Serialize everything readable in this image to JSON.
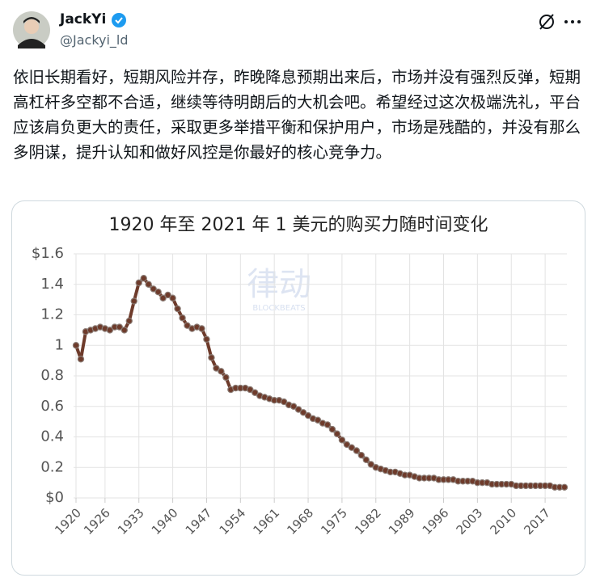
{
  "post": {
    "author": "JackYi",
    "handle": "@Jackyi_ld",
    "text": "依旧长期看好，短期风险并存，昨晚降息预期出来后，市场并没有强烈反弹，短期高杠杆多空都不合适，继续等待明朗后的大机会吧。希望经过这次极端洗礼，平台应该肩负更大的责任，采取更多举措平衡和保护用户，市场是残酷的，并没有那么多阴谋，提升认知和做好风控是你最好的核心竞争力。"
  },
  "chart_data": {
    "type": "line",
    "title": "1920 年至 2021 年 1 美元的购买力随时间变化",
    "watermark": "律动",
    "watermark_sub": "BLOCKBEATS",
    "x": [
      1920,
      1921,
      1922,
      1923,
      1924,
      1925,
      1926,
      1927,
      1928,
      1929,
      1930,
      1931,
      1932,
      1933,
      1934,
      1935,
      1936,
      1937,
      1938,
      1939,
      1940,
      1941,
      1942,
      1943,
      1944,
      1945,
      1946,
      1947,
      1948,
      1949,
      1950,
      1951,
      1952,
      1953,
      1954,
      1955,
      1956,
      1957,
      1958,
      1959,
      1960,
      1961,
      1962,
      1963,
      1964,
      1965,
      1966,
      1967,
      1968,
      1969,
      1970,
      1971,
      1972,
      1973,
      1974,
      1975,
      1976,
      1977,
      1978,
      1979,
      1980,
      1981,
      1982,
      1983,
      1984,
      1985,
      1986,
      1987,
      1988,
      1989,
      1990,
      1991,
      1992,
      1993,
      1994,
      1995,
      1996,
      1997,
      1998,
      1999,
      2000,
      2001,
      2002,
      2003,
      2004,
      2005,
      2006,
      2007,
      2008,
      2009,
      2010,
      2011,
      2012,
      2013,
      2014,
      2015,
      2016,
      2017,
      2018,
      2019,
      2020,
      2021
    ],
    "values": [
      1.0,
      0.91,
      1.09,
      1.1,
      1.11,
      1.12,
      1.11,
      1.1,
      1.12,
      1.12,
      1.1,
      1.16,
      1.29,
      1.41,
      1.44,
      1.4,
      1.37,
      1.35,
      1.31,
      1.33,
      1.31,
      1.24,
      1.18,
      1.13,
      1.11,
      1.12,
      1.11,
      1.04,
      0.92,
      0.85,
      0.83,
      0.79,
      0.71,
      0.72,
      0.72,
      0.72,
      0.71,
      0.69,
      0.67,
      0.66,
      0.65,
      0.64,
      0.64,
      0.63,
      0.61,
      0.6,
      0.58,
      0.56,
      0.54,
      0.52,
      0.51,
      0.49,
      0.48,
      0.45,
      0.42,
      0.38,
      0.35,
      0.33,
      0.31,
      0.28,
      0.25,
      0.22,
      0.2,
      0.19,
      0.18,
      0.17,
      0.17,
      0.16,
      0.15,
      0.15,
      0.14,
      0.13,
      0.13,
      0.13,
      0.13,
      0.12,
      0.12,
      0.12,
      0.12,
      0.11,
      0.11,
      0.11,
      0.11,
      0.1,
      0.1,
      0.1,
      0.09,
      0.09,
      0.09,
      0.09,
      0.09,
      0.08,
      0.08,
      0.08,
      0.08,
      0.08,
      0.08,
      0.08,
      0.08,
      0.07,
      0.07,
      0.07
    ],
    "color": "#6e3b2b",
    "xlim": [
      1919.5,
      2021.5
    ],
    "xticks": [
      1920,
      1926,
      1933,
      1940,
      1947,
      1954,
      1961,
      1968,
      1975,
      1982,
      1989,
      1996,
      2003,
      2010,
      2017
    ],
    "ylim": [
      0,
      1.6
    ],
    "yticks": [
      {
        "value": 0,
        "label": "$0"
      },
      0.2,
      0.4,
      0.6,
      0.8,
      1,
      1.2,
      1.4,
      {
        "value": 1.6,
        "label": "$1.6"
      }
    ],
    "grid": true
  }
}
